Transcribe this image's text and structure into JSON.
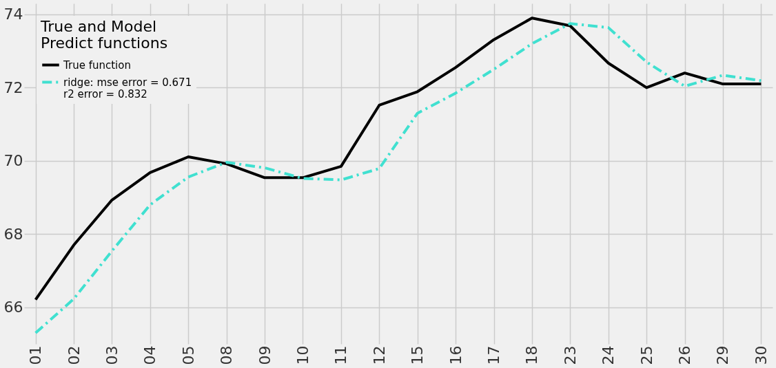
{
  "chart_data": {
    "type": "line",
    "legend_title": "True and Model\nPredict functions",
    "categories": [
      "01",
      "02",
      "03",
      "04",
      "05",
      "08",
      "09",
      "10",
      "11",
      "12",
      "15",
      "16",
      "17",
      "18",
      "23",
      "24",
      "25",
      "26",
      "29",
      "30"
    ],
    "series": [
      {
        "name": "True function",
        "color": "#000000",
        "line_style": "solid",
        "values": [
          66.21,
          67.7,
          68.93,
          69.68,
          70.11,
          69.92,
          69.54,
          69.54,
          69.85,
          71.52,
          71.89,
          72.55,
          73.31,
          73.9,
          73.69,
          72.67,
          72.0,
          72.4,
          72.1,
          72.1
        ]
      },
      {
        "name": "ridge: mse error = 0.671\n r2 error = 0.832",
        "color": "#40e0d0",
        "line_style": "dashdot",
        "values": [
          65.3,
          66.23,
          67.54,
          68.8,
          69.56,
          69.96,
          69.81,
          69.52,
          69.48,
          69.79,
          71.3,
          71.85,
          72.5,
          73.2,
          73.75,
          73.64,
          72.7,
          72.04,
          72.34,
          72.19
        ]
      }
    ],
    "ylim": [
      65,
      74.3
    ],
    "yticks": [
      66,
      68,
      70,
      72,
      74
    ],
    "grid": true,
    "legend": "top left",
    "marker": "none"
  }
}
